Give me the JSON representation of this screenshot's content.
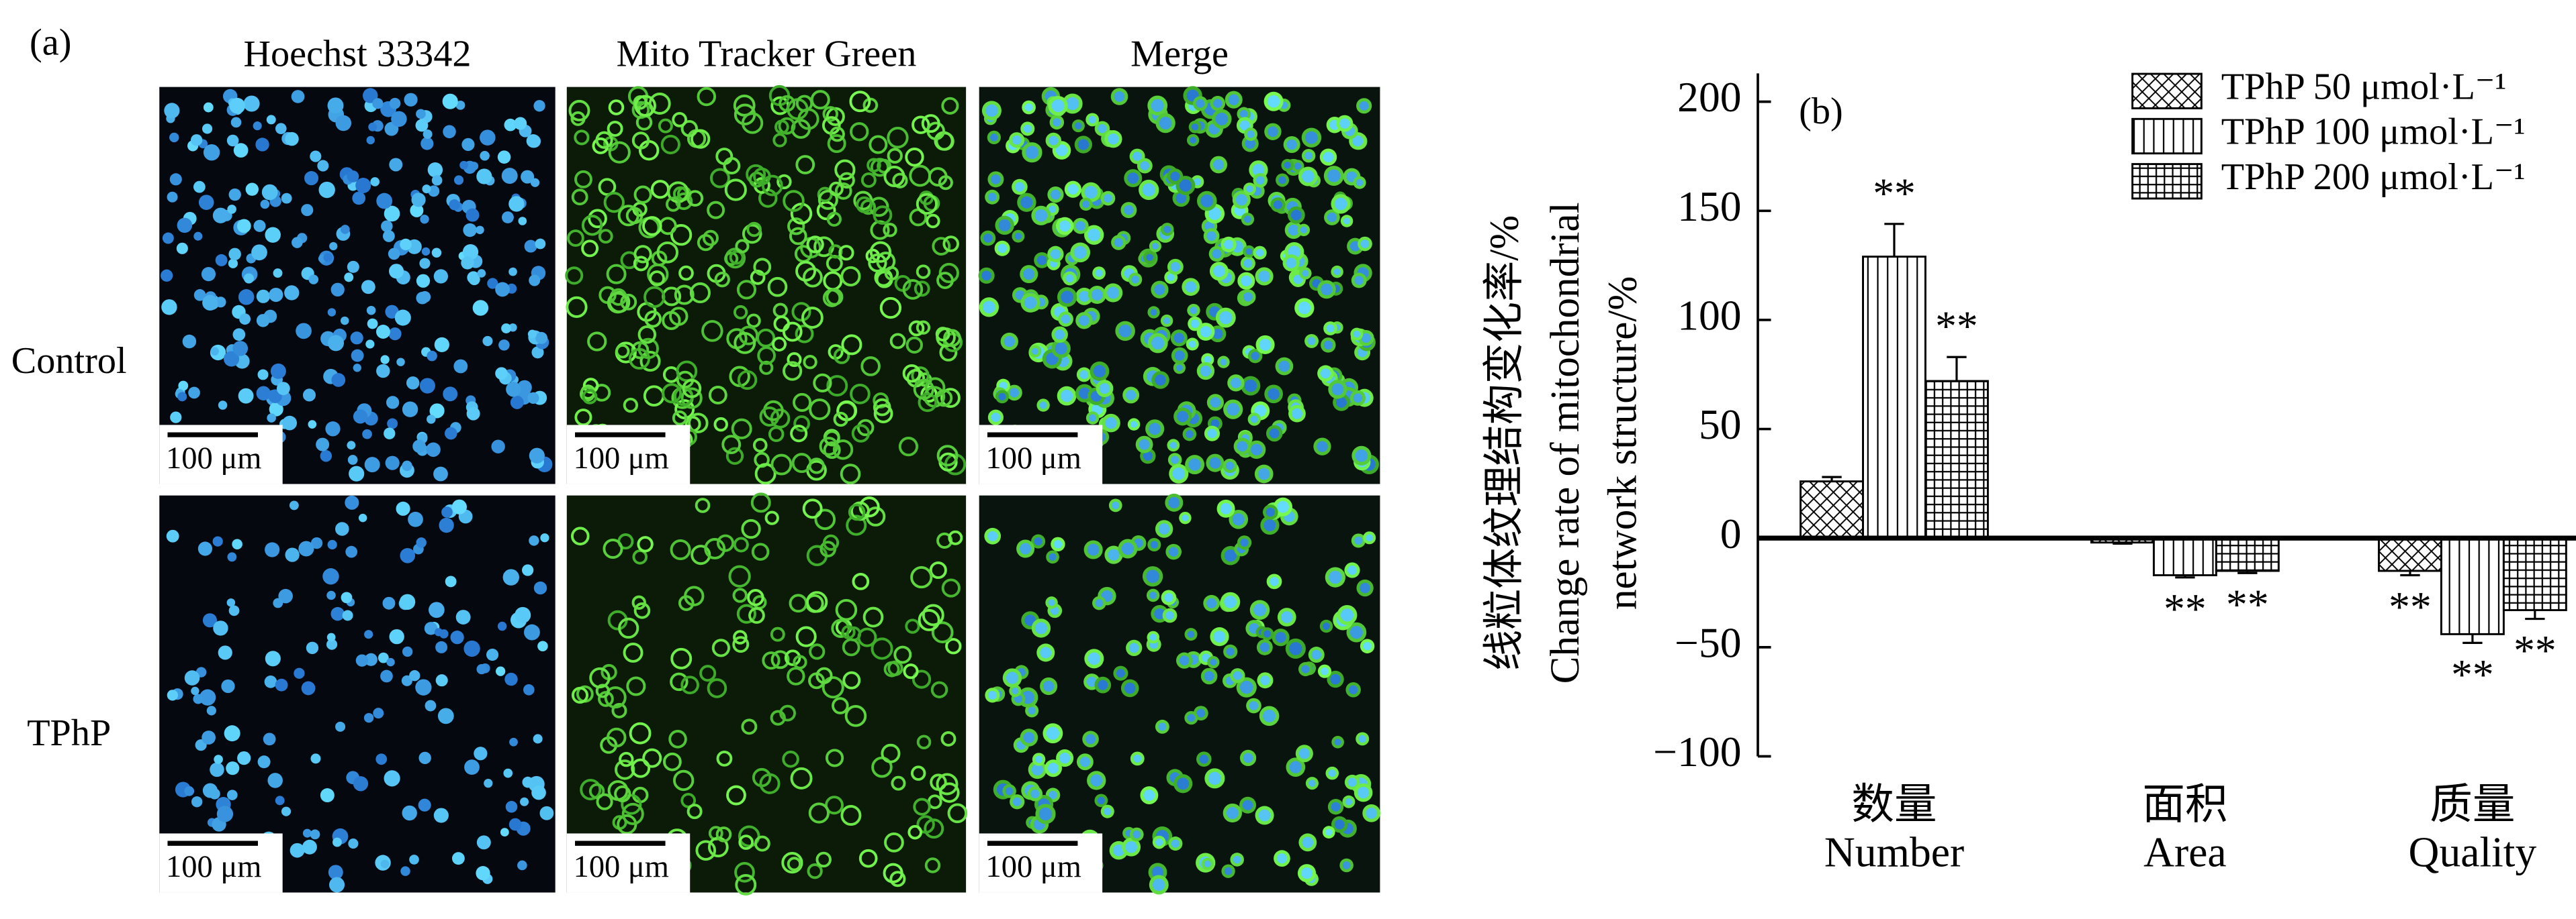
{
  "panel_a": {
    "label": "(a)",
    "columns": [
      "Hoechst 33342",
      "Mito Tracker Green",
      "Merge"
    ],
    "rows": [
      "Control",
      "TPhP"
    ],
    "scale_bar": "100 μm"
  },
  "chart_data": {
    "type": "bar",
    "panel_label": "(b)",
    "ylabel": [
      "线粒体纹理结构变化率/%",
      "Change rate of mitochondrial",
      "network structure/%"
    ],
    "categories": [
      "Number",
      "Area",
      "Quality"
    ],
    "categories_zh": [
      "数量",
      "面积",
      "质量"
    ],
    "series": [
      {
        "name": "TPhP 50 μmol·L⁻¹",
        "color": "#000000",
        "pattern": "crosshatch",
        "values": [
          26,
          -2,
          -15
        ],
        "errors": [
          2,
          0.5,
          2
        ],
        "marks": [
          null,
          null,
          "**"
        ]
      },
      {
        "name": "TPhP 100 μmol·L⁻¹",
        "color": "#000000",
        "pattern": "vertical",
        "values": [
          129,
          -17,
          -44
        ],
        "errors": [
          15,
          1,
          4
        ],
        "marks": [
          "**",
          "**",
          "**"
        ]
      },
      {
        "name": "TPhP 200 μmol·L⁻¹",
        "color": "#000000",
        "pattern": "grid",
        "values": [
          72,
          -15,
          -33
        ],
        "errors": [
          11,
          1,
          4
        ],
        "marks": [
          "**",
          "**",
          "**"
        ]
      }
    ],
    "ylim": [
      -100,
      213
    ],
    "yticks": [
      {
        "value": -100,
        "label": "−100"
      },
      {
        "value": -50,
        "label": "−50"
      },
      0,
      50,
      100,
      150,
      200
    ],
    "legend": "top-right"
  }
}
